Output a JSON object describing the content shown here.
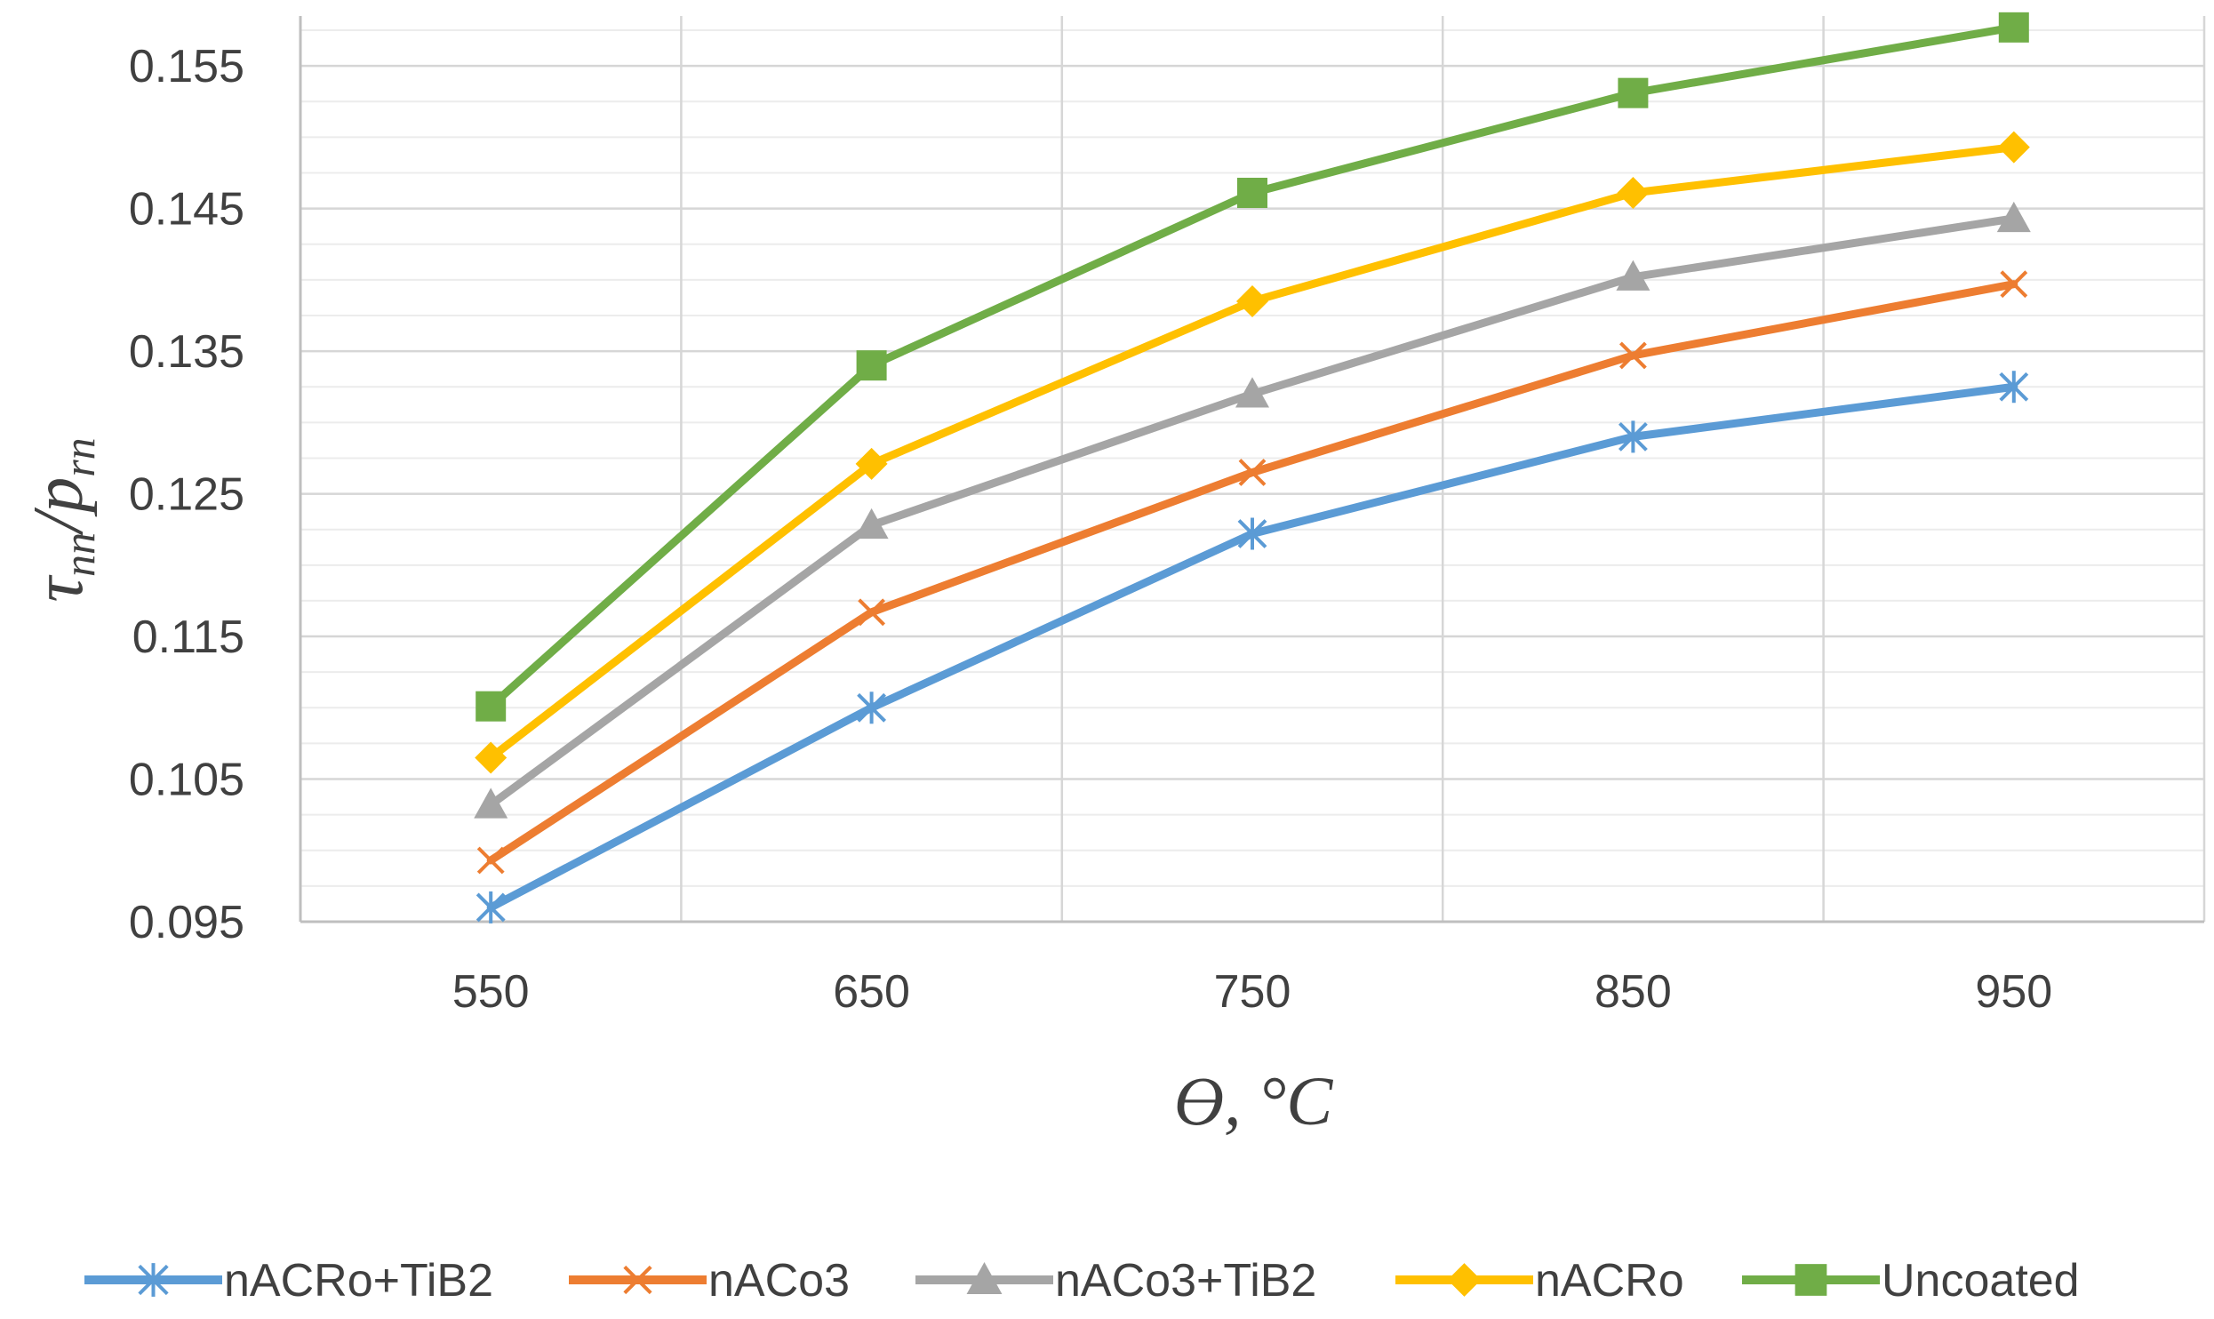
{
  "chart_data": {
    "type": "line",
    "title": "",
    "xlabel": "ϴ, °C",
    "ylabel": {
      "main": "τ",
      "sub": "nn",
      "sep": "/",
      "main2": "p",
      "sub2": "rn"
    },
    "x": [
      550,
      650,
      750,
      850,
      950
    ],
    "xlim": [
      500,
      1000
    ],
    "ylim": [
      0.095,
      0.1585
    ],
    "yticks": [
      "0.095",
      "0.105",
      "0.115",
      "0.125",
      "0.135",
      "0.145",
      "0.155"
    ],
    "yticks_values": [
      0.095,
      0.105,
      0.115,
      0.125,
      0.135,
      0.145,
      0.155
    ],
    "grid": true,
    "legend_position": "bottom",
    "series": [
      {
        "name": "nACRo+TiB2",
        "color": "#5B9BD5",
        "marker": "asterisk",
        "values": [
          0.096,
          0.11,
          0.1222,
          0.129,
          0.1325
        ]
      },
      {
        "name": "nACo3",
        "color": "#ED7D31",
        "marker": "x",
        "values": [
          0.0993,
          0.1167,
          0.1265,
          0.1347,
          0.1397
        ]
      },
      {
        "name": "nACo3+TiB2",
        "color": "#A5A5A5",
        "marker": "triangle",
        "values": [
          0.1032,
          0.1228,
          0.132,
          0.1402,
          0.1443
        ]
      },
      {
        "name": "nACRo",
        "color": "#FFC000",
        "marker": "diamond",
        "values": [
          0.1065,
          0.1271,
          0.1385,
          0.1461,
          0.1493
        ]
      },
      {
        "name": "Uncoated",
        "color": "#70AD47",
        "marker": "square",
        "values": [
          0.1101,
          0.134,
          0.1461,
          0.1531,
          0.1577
        ]
      }
    ]
  }
}
